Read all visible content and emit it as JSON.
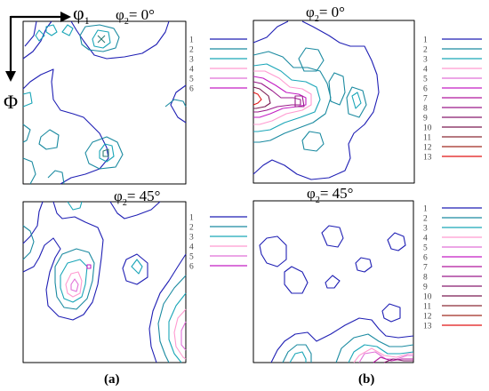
{
  "axes": {
    "phi1_symbol": "φ",
    "phi1_sub": "1",
    "Phi_symbol": "Φ"
  },
  "panels": [
    {
      "id": "a-top",
      "phi2_symbol": "φ",
      "phi2_sub": "2",
      "phi2_value": "= 0°"
    },
    {
      "id": "b-top",
      "phi2_symbol": "φ",
      "phi2_sub": "2",
      "phi2_value": "= 0°"
    },
    {
      "id": "a-bottom",
      "phi2_symbol": "φ",
      "phi2_sub": "2",
      "phi2_value": "= 45°"
    },
    {
      "id": "b-bottom",
      "phi2_symbol": "φ",
      "phi2_sub": "2",
      "phi2_value": "= 45°"
    }
  ],
  "legend_a": [
    {
      "label": "1",
      "color": "#1f1fb4"
    },
    {
      "label": "2",
      "color": "#1a8aa0"
    },
    {
      "label": "3",
      "color": "#1aa6b8"
    },
    {
      "label": "4",
      "color": "#ff9ad0"
    },
    {
      "label": "5",
      "color": "#e070d8"
    },
    {
      "label": "6",
      "color": "#c31ec3"
    }
  ],
  "legend_b": [
    {
      "label": "1",
      "color": "#1f1fb4"
    },
    {
      "label": "2",
      "color": "#1a8aa0"
    },
    {
      "label": "3",
      "color": "#1aa6b8"
    },
    {
      "label": "4",
      "color": "#ff9ad0"
    },
    {
      "label": "5",
      "color": "#e070d8"
    },
    {
      "label": "6",
      "color": "#c31ec3"
    },
    {
      "label": "7",
      "color": "#b0189e"
    },
    {
      "label": "8",
      "color": "#9a1a8a"
    },
    {
      "label": "9",
      "color": "#861a6e"
    },
    {
      "label": "10",
      "color": "#7a1a52"
    },
    {
      "label": "11",
      "color": "#8a2a36"
    },
    {
      "label": "12",
      "color": "#a02a22"
    },
    {
      "label": "13",
      "color": "#e01414"
    }
  ],
  "captions": {
    "a": "(a)",
    "b": "(b)"
  }
}
